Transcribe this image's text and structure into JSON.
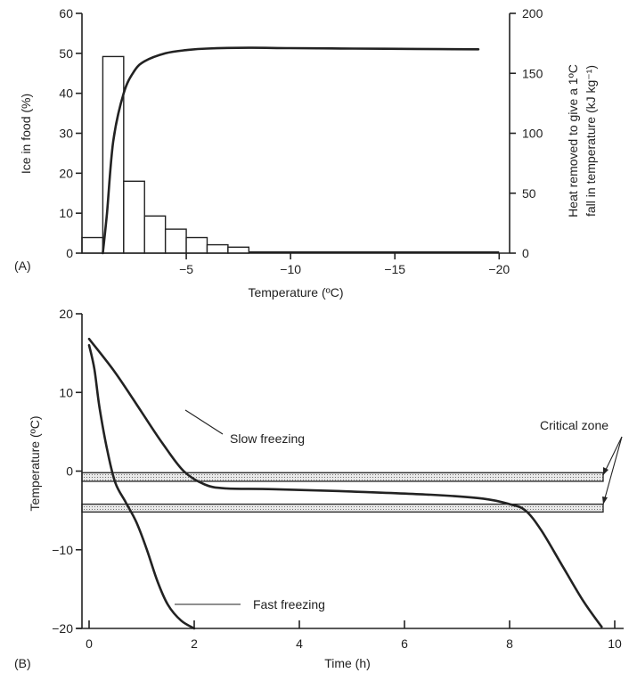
{
  "chart_data": [
    {
      "type": "bar",
      "panel_label": "(A)",
      "xlabel": "Temperature (ºC)",
      "ylabel": "Ice in food (%)",
      "y2label_line1": "Heat removed to give a 1ºC",
      "y2label_line2": "fall in temperature (kJ kg⁻¹)",
      "xlim": [
        0,
        -20.5
      ],
      "ylim": [
        0,
        60
      ],
      "y2lim": [
        0,
        200
      ],
      "xticks": [
        {
          "v": -5,
          "label": "−5"
        },
        {
          "v": -10,
          "label": "−10"
        },
        {
          "v": -15,
          "label": "−15"
        },
        {
          "v": -20,
          "label": "−20"
        }
      ],
      "yticks": [
        0,
        10,
        20,
        30,
        40,
        50,
        60
      ],
      "y2ticks": [
        0,
        50,
        100,
        150,
        200
      ],
      "bars": {
        "axis": "y2",
        "edges": [
          0,
          -1,
          -2,
          -3,
          -4,
          -5,
          -6,
          -7,
          -8
        ],
        "values": [
          13,
          164,
          60,
          31,
          20,
          13,
          7,
          5,
          1
        ]
      },
      "series": [
        {
          "axis": "y",
          "x": [
            -1.0,
            -1.2,
            -1.5,
            -2,
            -2.5,
            -3,
            -4,
            -5,
            -6,
            -8,
            -10,
            -13,
            -16,
            -19
          ],
          "y": [
            0,
            10,
            28,
            40,
            45.5,
            48,
            50,
            50.8,
            51.2,
            51.4,
            51.3,
            51.2,
            51.1,
            51.0
          ]
        }
      ],
      "tail_line": {
        "axis": "y2",
        "x_from": -8,
        "x_to": -20,
        "y": 1
      }
    },
    {
      "type": "line",
      "panel_label": "(B)",
      "xlabel": "Time (h)",
      "ylabel": "Temperature (ºC)",
      "xlim": [
        -0.05,
        10.2
      ],
      "ylim": [
        -20,
        20
      ],
      "xticks": [
        0,
        2,
        4,
        6,
        8,
        10
      ],
      "yticks": [
        20,
        10,
        0,
        -10,
        -20
      ],
      "critical_zone": {
        "label": "Critical zone",
        "bands": [
          [
            -1.3,
            -0.2
          ],
          [
            -5.2,
            -4.2
          ]
        ]
      },
      "series": [
        {
          "name": "Slow freezing",
          "x": [
            0.0,
            0.5,
            1.0,
            1.4,
            1.8,
            2.2,
            2.6,
            3.5,
            5.0,
            6.5,
            7.5,
            8.0,
            8.3,
            8.6,
            9.0,
            9.4,
            9.75
          ],
          "y": [
            16.8,
            12.5,
            7.5,
            3.5,
            0,
            -1.7,
            -2.2,
            -2.3,
            -2.6,
            -3.0,
            -3.5,
            -4.2,
            -5.0,
            -7.5,
            -12.0,
            -16.5,
            -19.8
          ]
        },
        {
          "name": "Fast freezing",
          "x": [
            0.0,
            0.1,
            0.2,
            0.35,
            0.5,
            0.7,
            0.9,
            1.1,
            1.3,
            1.5,
            1.75,
            2.0
          ],
          "y": [
            16.0,
            13.0,
            8.0,
            2.5,
            -1.5,
            -4.0,
            -6.5,
            -10.0,
            -14.0,
            -17.0,
            -19.0,
            -20.0
          ]
        }
      ]
    }
  ]
}
